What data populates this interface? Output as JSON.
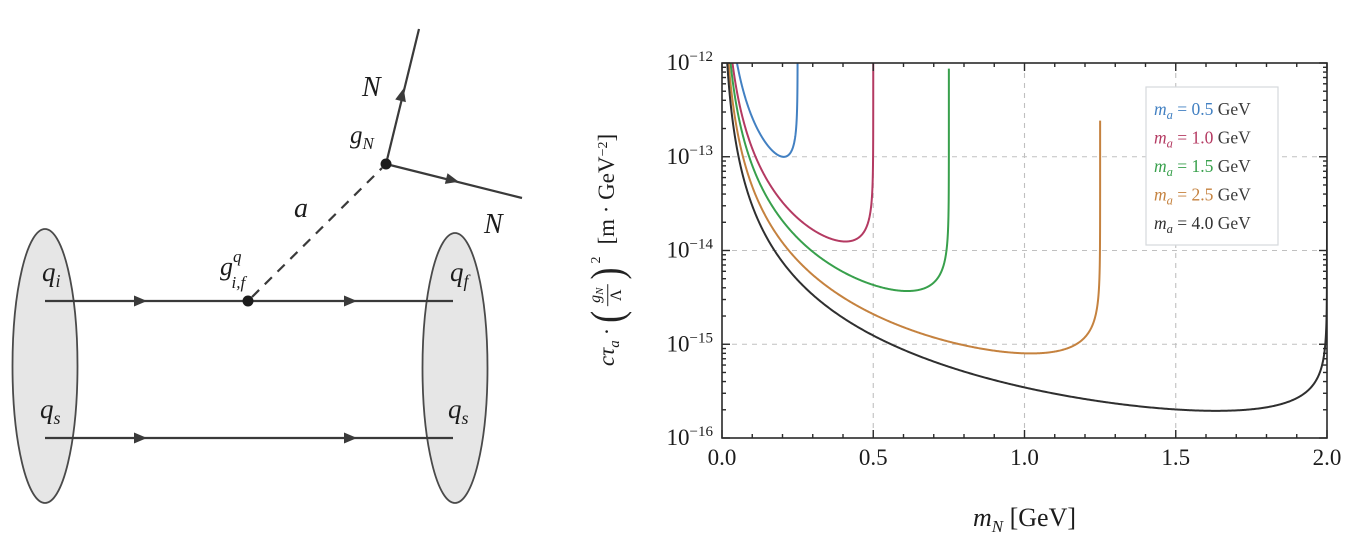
{
  "figure": {
    "description": "Two-panel physics figure: Feynman diagram of quark transition emitting axion a decaying to two heavy neutral leptons N, and decay-length plot",
    "background": "#ffffff"
  },
  "feynman": {
    "incoming_blob_top_label": {
      "main": "q",
      "sub": "i"
    },
    "incoming_blob_bottom_label": {
      "main": "q",
      "sub": "s"
    },
    "outgoing_blob_top_label": {
      "main": "q",
      "sub": "f"
    },
    "outgoing_blob_bottom_label": {
      "main": "q",
      "sub": "s"
    },
    "mediator_label": "a",
    "quark_coupling_label": {
      "main": "g",
      "sup": "q",
      "sub": "i,f"
    },
    "N_coupling_label": {
      "main": "g",
      "sub": "N"
    },
    "upper_N_label": "N",
    "lower_N_label": "N",
    "colors": {
      "blob_fill": "#e6e6e6",
      "blob_stroke": "#4a4a4a",
      "line": "#3a3a3a",
      "text": "#1c1c1c"
    }
  },
  "chart_data": {
    "type": "line",
    "title": "",
    "xlabel_parts": {
      "var": "m",
      "sub": "N",
      "unit": " [GeV]"
    },
    "ylabel_parts": {
      "prefix_var": "cτ",
      "prefix_sub": "a",
      "cdot": "·",
      "paren_open": "(",
      "frac_num": "g",
      "frac_num_sub": "N",
      "frac_den": "Λ",
      "paren_close": ")",
      "exponent": "2",
      "unit_pre": "[m · GeV",
      "unit_sup": "−2",
      "unit_post": "]"
    },
    "xlim": [
      0.0,
      2.0
    ],
    "ylim": [
      1e-16,
      1e-12
    ],
    "x_ticks": {
      "values": [
        0.0,
        0.5,
        1.0,
        1.5,
        2.0
      ],
      "labels": [
        "0.0",
        "0.5",
        "1.0",
        "1.5",
        "2.0"
      ],
      "minor_step": 0.1
    },
    "y_ticks": {
      "exponents": [
        -12,
        -13,
        -14,
        -15,
        -16
      ],
      "labels": [
        {
          "base": "10",
          "exp": "−12"
        },
        {
          "base": "10",
          "exp": "−13"
        },
        {
          "base": "10",
          "exp": "−14"
        },
        {
          "base": "10",
          "exp": "−15"
        },
        {
          "base": "10",
          "exp": "−16"
        }
      ],
      "log_minor_multipliers": [
        2,
        3,
        4,
        5,
        6,
        7,
        8,
        9
      ]
    },
    "grid": {
      "style": "dashed",
      "color": "#c0c0c0",
      "x_values": [
        0.5,
        1.0,
        1.5
      ],
      "y_exponents": [
        -12,
        -13,
        -14,
        -15
      ]
    },
    "frame_color": "#2a2a2a",
    "legend": {
      "position": "upper-right",
      "box_fill": "#ffffff",
      "box_stroke": "#d5d9dd",
      "unit_color": "#3a3a3a",
      "entries": [
        {
          "var": "m",
          "sub": "a",
          "mid": " = ",
          "value": "0.5",
          "unit": " GeV",
          "color": "#4280c2"
        },
        {
          "var": "m",
          "sub": "a",
          "mid": " = ",
          "value": "1.0",
          "unit": " GeV",
          "color": "#b43a62"
        },
        {
          "var": "m",
          "sub": "a",
          "mid": " = ",
          "value": "1.5",
          "unit": " GeV",
          "color": "#38a04c"
        },
        {
          "var": "m",
          "sub": "a",
          "mid": " = ",
          "value": "2.5",
          "unit": " GeV",
          "color": "#c5823f"
        },
        {
          "var": "m",
          "sub": "a",
          "mid": " = ",
          "value": "4.0",
          "unit": " GeV",
          "color": "#2f2f2f"
        }
      ]
    },
    "series": [
      {
        "name": "ma-0.5-GeV",
        "m_a": 0.5,
        "color": "#4280c2",
        "asymptote_mN": 0.25,
        "min_point": {
          "x": 0.2,
          "y": 1e-13
        }
      },
      {
        "name": "ma-1.0-GeV",
        "m_a": 1.0,
        "color": "#b43a62",
        "asymptote_mN": 0.5,
        "min_point": {
          "x": 0.41,
          "y": 1.3e-14
        }
      },
      {
        "name": "ma-1.5-GeV",
        "m_a": 1.5,
        "color": "#38a04c",
        "asymptote_mN": 0.75,
        "min_point": {
          "x": 0.61,
          "y": 3.7e-15
        }
      },
      {
        "name": "ma-2.5-GeV",
        "m_a": 2.5,
        "color": "#c5823f",
        "asymptote_mN": 1.25,
        "min_point": {
          "x": 1.02,
          "y": 8e-16
        }
      },
      {
        "name": "ma-4.0-GeV",
        "m_a": 4.0,
        "color": "#2f2f2f",
        "asymptote_mN": 2.0,
        "min_point": {
          "x": 1.63,
          "y": 1.9e-16
        }
      }
    ],
    "curve_model": {
      "description": "ctau_a*(gN/Lambda)^2 = C / (m_a * mN^2 * sqrt(1 - (2*mN/m_a)^2)), diverges at mN = m_a/2",
      "C": 1.2e-15
    }
  }
}
